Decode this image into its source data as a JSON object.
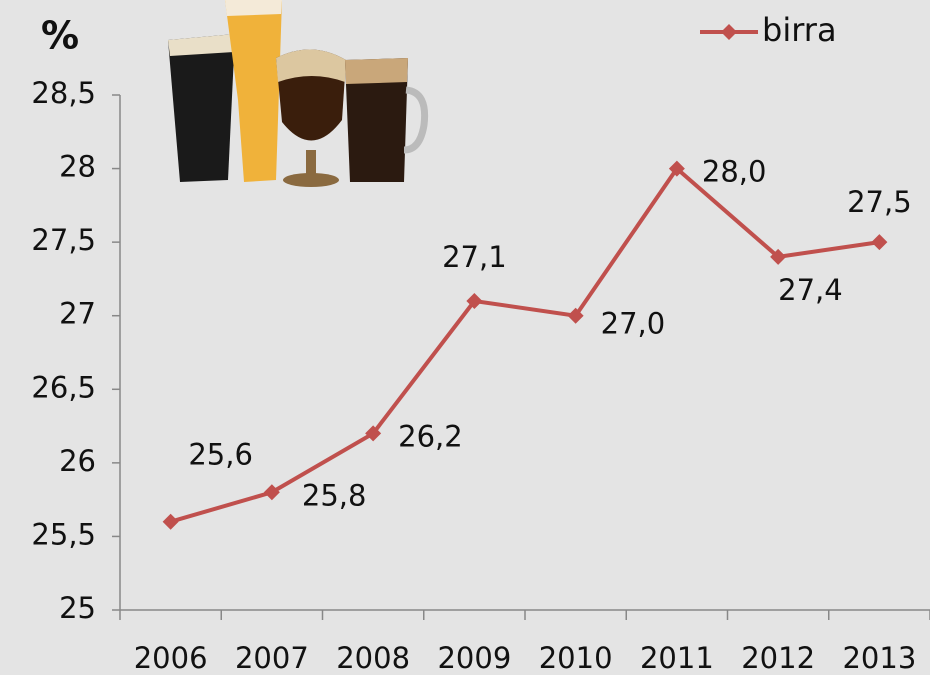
{
  "chart_data": {
    "type": "line",
    "title": "%",
    "categories": [
      "2006",
      "2007",
      "2008",
      "2009",
      "2010",
      "2011",
      "2012",
      "2013"
    ],
    "series": [
      {
        "name": "birra",
        "color": "#c0504d",
        "values": [
          25.6,
          25.8,
          26.2,
          27.1,
          27.0,
          28.0,
          27.4,
          27.5
        ],
        "value_labels": [
          "25,6",
          "25,8",
          "26,2",
          "27,1",
          "27,0",
          "28,0",
          "27,4",
          "27,5"
        ]
      }
    ],
    "ylim": [
      25,
      28.5
    ],
    "yticks": [
      25,
      {
        "value": 25.5,
        "label": "25,5"
      },
      26,
      {
        "value": 26.5,
        "label": "26,5"
      },
      27,
      {
        "value": 27.5,
        "label": "27,5"
      },
      28,
      {
        "value": 28.5,
        "label": "28,5"
      }
    ],
    "legend": "top-right"
  }
}
